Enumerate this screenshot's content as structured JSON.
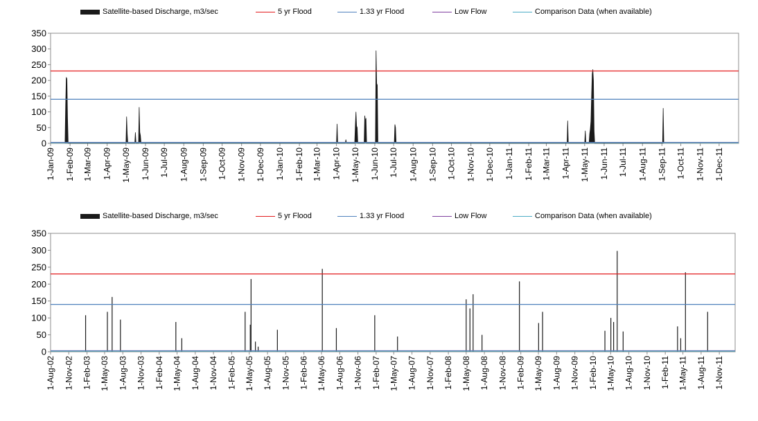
{
  "legend": {
    "items": [
      {
        "label": "Satellite-based Discharge, m3/sec",
        "kind": "bar",
        "color": "#1a1a1a"
      },
      {
        "label": "5 yr Flood",
        "kind": "line",
        "color": "#e31a1c"
      },
      {
        "label": "1.33 yr Flood",
        "kind": "line",
        "color": "#4f81bd"
      },
      {
        "label": "Low Flow",
        "kind": "line",
        "color": "#7f3f9f"
      },
      {
        "label": "Comparison Data (when available)",
        "kind": "line",
        "color": "#4bacc6"
      }
    ]
  },
  "chart_data": [
    {
      "type": "area",
      "ylim": [
        0,
        350
      ],
      "yticks": [
        0,
        50,
        100,
        150,
        200,
        250,
        300,
        350
      ],
      "xlim": [
        "2009-01-01",
        "2012-01-01"
      ],
      "xticks": [
        "1-Jan-09",
        "1-Feb-09",
        "1-Mar-09",
        "1-Apr-09",
        "1-May-09",
        "1-Jun-09",
        "1-Jul-09",
        "1-Aug-09",
        "1-Sep-09",
        "1-Oct-09",
        "1-Nov-09",
        "1-Dec-09",
        "1-Jan-10",
        "1-Feb-10",
        "1-Mar-10",
        "1-Apr-10",
        "1-May-10",
        "1-Jun-10",
        "1-Jul-10",
        "1-Aug-10",
        "1-Sep-10",
        "1-Oct-10",
        "1-Nov-10",
        "1-Dec-10",
        "1-Jan-11",
        "1-Feb-11",
        "1-Mar-11",
        "1-Apr-11",
        "1-May-11",
        "1-Jun-11",
        "1-Jul-11",
        "1-Aug-11",
        "1-Sep-11",
        "1-Oct-11",
        "1-Nov-11",
        "1-Dec-11"
      ],
      "series": [
        {
          "name": "Satellite-based Discharge, m3/sec",
          "type": "area",
          "color": "#1a1a1a",
          "points": [
            [
              "2009-01-24",
              0
            ],
            [
              "2009-01-25",
              120
            ],
            [
              "2009-01-26",
              210
            ],
            [
              "2009-01-27",
              205
            ],
            [
              "2009-01-28",
              80
            ],
            [
              "2009-01-29",
              0
            ],
            [
              "2009-05-01",
              0
            ],
            [
              "2009-05-02",
              85
            ],
            [
              "2009-05-03",
              30
            ],
            [
              "2009-05-04",
              0
            ],
            [
              "2009-05-15",
              0
            ],
            [
              "2009-05-16",
              35
            ],
            [
              "2009-05-17",
              0
            ],
            [
              "2009-05-21",
              0
            ],
            [
              "2009-05-22",
              115
            ],
            [
              "2009-05-23",
              35
            ],
            [
              "2009-05-24",
              25
            ],
            [
              "2009-05-25",
              0
            ],
            [
              "2010-04-01",
              0
            ],
            [
              "2010-04-02",
              62
            ],
            [
              "2010-04-03",
              0
            ],
            [
              "2010-04-15",
              0
            ],
            [
              "2010-04-16",
              12
            ],
            [
              "2010-04-17",
              0
            ],
            [
              "2010-04-30",
              0
            ],
            [
              "2010-05-01",
              55
            ],
            [
              "2010-05-02",
              100
            ],
            [
              "2010-05-03",
              55
            ],
            [
              "2010-05-04",
              50
            ],
            [
              "2010-05-05",
              0
            ],
            [
              "2010-05-15",
              0
            ],
            [
              "2010-05-16",
              88
            ],
            [
              "2010-05-17",
              70
            ],
            [
              "2010-05-18",
              80
            ],
            [
              "2010-05-19",
              0
            ],
            [
              "2010-06-02",
              0
            ],
            [
              "2010-06-03",
              295
            ],
            [
              "2010-06-04",
              190
            ],
            [
              "2010-06-05",
              185
            ],
            [
              "2010-06-06",
              0
            ],
            [
              "2010-07-02",
              0
            ],
            [
              "2010-07-03",
              60
            ],
            [
              "2010-07-04",
              50
            ],
            [
              "2010-07-05",
              0
            ],
            [
              "2011-04-03",
              0
            ],
            [
              "2011-04-04",
              72
            ],
            [
              "2011-04-05",
              0
            ],
            [
              "2011-05-01",
              0
            ],
            [
              "2011-05-02",
              40
            ],
            [
              "2011-05-03",
              0
            ],
            [
              "2011-05-08",
              0
            ],
            [
              "2011-05-09",
              30
            ],
            [
              "2011-05-10",
              45
            ],
            [
              "2011-05-11",
              70
            ],
            [
              "2011-05-12",
              150
            ],
            [
              "2011-05-13",
              220
            ],
            [
              "2011-05-14",
              235
            ],
            [
              "2011-05-15",
              200
            ],
            [
              "2011-05-16",
              40
            ],
            [
              "2011-05-17",
              0
            ],
            [
              "2011-09-02",
              0
            ],
            [
              "2011-09-03",
              112
            ],
            [
              "2011-09-04",
              0
            ]
          ]
        },
        {
          "name": "5 yr Flood",
          "type": "hline",
          "value": 230,
          "color": "#e31a1c"
        },
        {
          "name": "1.33 yr Flood",
          "type": "hline",
          "value": 140,
          "color": "#4f81bd"
        },
        {
          "name": "Low Flow",
          "type": "hline",
          "value": 3,
          "color": "#7f3f9f"
        },
        {
          "name": "Comparison Data (when available)",
          "type": "hline",
          "value": 2,
          "color": "#4bacc6"
        }
      ]
    },
    {
      "type": "area",
      "ylim": [
        0,
        350
      ],
      "yticks": [
        0,
        50,
        100,
        150,
        200,
        250,
        300,
        350
      ],
      "xlim": [
        "2002-08-01",
        "2012-01-20"
      ],
      "xticks": [
        "1-Aug-02",
        "1-Nov-02",
        "1-Feb-03",
        "1-May-03",
        "1-Aug-03",
        "1-Nov-03",
        "1-Feb-04",
        "1-May-04",
        "1-Aug-04",
        "1-Nov-04",
        "1-Feb-05",
        "1-May-05",
        "1-Aug-05",
        "1-Nov-05",
        "1-Feb-06",
        "1-May-06",
        "1-Aug-06",
        "1-Nov-06",
        "1-Feb-07",
        "1-May-07",
        "1-Aug-07",
        "1-Nov-07",
        "1-Feb-08",
        "1-May-08",
        "1-Aug-08",
        "1-Nov-08",
        "1-Feb-09",
        "1-May-09",
        "1-Aug-09",
        "1-Nov-09",
        "1-Feb-10",
        "1-May-10",
        "1-Aug-10",
        "1-Nov-10",
        "1-Feb-11",
        "1-May-11",
        "1-Aug-11",
        "1-Nov-11"
      ],
      "series": [
        {
          "name": "Satellite-based Discharge, m3/sec",
          "type": "spikes",
          "color": "#1a1a1a",
          "points": [
            [
              "2003-01-25",
              108
            ],
            [
              "2003-05-15",
              118
            ],
            [
              "2003-06-08",
              162
            ],
            [
              "2003-07-20",
              95
            ],
            [
              "2004-04-25",
              88
            ],
            [
              "2004-05-25",
              40
            ],
            [
              "2005-04-10",
              118
            ],
            [
              "2005-05-06",
              80
            ],
            [
              "2005-05-10",
              215
            ],
            [
              "2005-06-01",
              30
            ],
            [
              "2005-06-15",
              15
            ],
            [
              "2005-09-20",
              65
            ],
            [
              "2006-05-05",
              245
            ],
            [
              "2006-07-15",
              70
            ],
            [
              "2007-01-25",
              108
            ],
            [
              "2007-05-20",
              45
            ],
            [
              "2008-05-01",
              155
            ],
            [
              "2008-05-20",
              128
            ],
            [
              "2008-06-05",
              170
            ],
            [
              "2008-07-20",
              50
            ],
            [
              "2009-01-25",
              208
            ],
            [
              "2009-05-02",
              85
            ],
            [
              "2009-05-22",
              118
            ],
            [
              "2010-04-02",
              62
            ],
            [
              "2010-05-02",
              100
            ],
            [
              "2010-05-16",
              88
            ],
            [
              "2010-06-03",
              298
            ],
            [
              "2010-07-03",
              60
            ],
            [
              "2011-04-04",
              75
            ],
            [
              "2011-04-20",
              40
            ],
            [
              "2011-05-14",
              235
            ],
            [
              "2011-09-03",
              118
            ]
          ]
        },
        {
          "name": "5 yr Flood",
          "type": "hline",
          "value": 230,
          "color": "#e31a1c"
        },
        {
          "name": "1.33 yr Flood",
          "type": "hline",
          "value": 140,
          "color": "#4f81bd"
        },
        {
          "name": "Low Flow",
          "type": "hline",
          "value": 3,
          "color": "#7f3f9f"
        },
        {
          "name": "Comparison Data (when available)",
          "type": "hline",
          "value": 2,
          "color": "#4bacc6"
        }
      ]
    }
  ]
}
